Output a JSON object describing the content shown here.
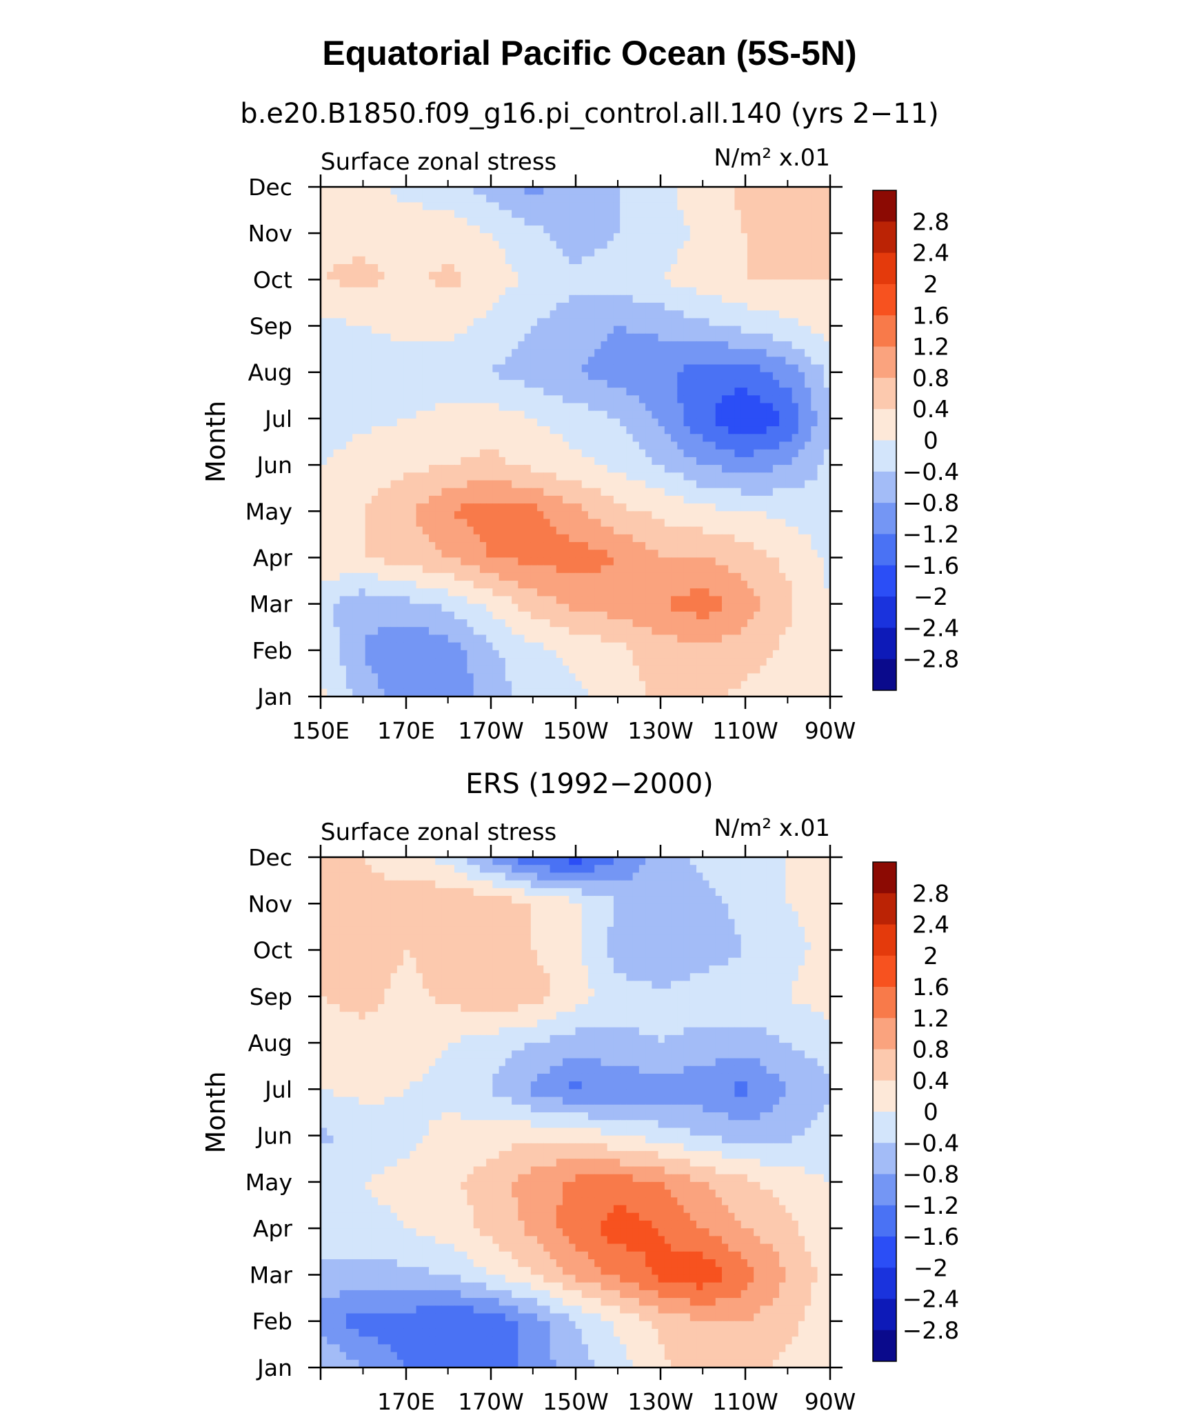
{
  "title": "Equatorial Pacific Ocean (5S-5N)",
  "subtitle_top": "b.e20.B1850.f09_g16.pi_control.all.140 (yrs 2−11)",
  "subtitle_bottom": "ERS (1992−2000)",
  "contour_colors": [
    "#0a0a8c",
    "#0d1ab8",
    "#1a33dd",
    "#2b4ef6",
    "#4a72f4",
    "#7496f4",
    "#a3bcf7",
    "#d3e5fb",
    "#fde8d8",
    "#fcc9ae",
    "#faa37e",
    "#f87a4a",
    "#f7521f",
    "#e43a0c",
    "#bb2305",
    "#8c0a03"
  ],
  "chart_data": [
    {
      "type": "heatmap",
      "panel": "model",
      "title": "b.e20.B1850.f09_g16.pi_control.all.140 (yrs 2−11)",
      "variable_label": "Surface zonal stress",
      "units_label": "N/m² x.01",
      "xlabel": "",
      "ylabel": "Month",
      "x_tick_labels": [
        "150E",
        "170E",
        "170W",
        "150W",
        "130W",
        "110W",
        "90W"
      ],
      "y_tick_labels": [
        "Jan",
        "Feb",
        "Mar",
        "Apr",
        "May",
        "Jun",
        "Jul",
        "Aug",
        "Sep",
        "Oct",
        "Nov",
        "Dec"
      ],
      "colorbar_levels": [
        "2.8",
        "2.4",
        "2",
        "1.6",
        "1.2",
        "0.8",
        "0.4",
        "0",
        "−0.4",
        "−0.8",
        "−1.2",
        "−1.6",
        "−2",
        "−2.4",
        "−2.8"
      ],
      "values": [
        [
          0.1,
          -0.6,
          -1.0,
          -1.2,
          -0.6,
          -0.2,
          -0.1,
          0.2,
          0.5,
          0.5,
          0.3,
          0.1,
          0.0
        ],
        [
          -0.1,
          -0.8,
          -1.2,
          -1.0,
          -0.5,
          -0.1,
          0.1,
          0.3,
          0.6,
          0.7,
          0.6,
          0.3,
          0.0
        ],
        [
          -0.3,
          -0.7,
          -0.5,
          -0.3,
          0.1,
          0.6,
          0.9,
          1.0,
          1.2,
          1.4,
          1.0,
          0.5,
          0.0
        ],
        [
          0.3,
          0.4,
          0.6,
          0.8,
          1.2,
          1.3,
          1.4,
          1.2,
          0.8,
          0.8,
          0.6,
          0.3,
          -0.1
        ],
        [
          0.3,
          0.4,
          0.7,
          1.2,
          1.4,
          1.3,
          0.9,
          0.5,
          0.3,
          0.1,
          0.0,
          -0.1,
          -0.2
        ],
        [
          0.0,
          0.2,
          0.3,
          0.4,
          0.5,
          0.3,
          0.1,
          -0.1,
          -0.4,
          -0.8,
          -1.0,
          -0.8,
          -0.3
        ],
        [
          -0.2,
          -0.1,
          0.0,
          0.1,
          0.2,
          0.0,
          -0.2,
          -0.4,
          -0.9,
          -1.5,
          -2.0,
          -1.6,
          -0.4
        ],
        [
          -0.4,
          -0.2,
          -0.2,
          -0.2,
          -0.4,
          -0.6,
          -0.8,
          -1.0,
          -1.1,
          -1.4,
          -1.4,
          -1.0,
          -0.3
        ],
        [
          -0.1,
          0.0,
          0.1,
          0.1,
          -0.1,
          -0.4,
          -0.6,
          -0.8,
          -0.7,
          -0.5,
          -0.3,
          -0.1,
          0.2
        ],
        [
          0.4,
          0.5,
          0.3,
          0.5,
          0.2,
          -0.1,
          -0.3,
          -0.2,
          0.0,
          0.2,
          0.4,
          0.4,
          0.4
        ],
        [
          0.3,
          0.3,
          0.2,
          0.2,
          0.0,
          -0.3,
          -0.6,
          -0.4,
          -0.2,
          0.1,
          0.4,
          0.6,
          0.5
        ],
        [
          0.2,
          0.1,
          -0.1,
          -0.2,
          -0.6,
          -0.9,
          -0.7,
          -0.4,
          -0.1,
          0.2,
          0.5,
          0.6,
          0.4
        ]
      ]
    },
    {
      "type": "heatmap",
      "panel": "obs",
      "title": "ERS (1992−2000)",
      "variable_label": "Surface zonal stress",
      "units_label": "N/m² x.01",
      "xlabel": "",
      "ylabel": "Month",
      "x_tick_labels": [
        "170E",
        "170W",
        "150W",
        "130W",
        "110W",
        "90W"
      ],
      "y_tick_labels": [
        "Jan",
        "Feb",
        "Mar",
        "Apr",
        "May",
        "Jun",
        "Jul",
        "Aug",
        "Sep",
        "Oct",
        "Nov",
        "Dec"
      ],
      "colorbar_levels": [
        "2.8",
        "2.4",
        "2",
        "1.6",
        "1.2",
        "0.8",
        "0.4",
        "0",
        "−0.4",
        "−0.8",
        "−1.2",
        "−1.6",
        "−2",
        "−2.4",
        "−2.8"
      ],
      "values": [
        [
          -0.4,
          -0.8,
          -1.2,
          -1.6,
          -1.6,
          -1.0,
          -0.6,
          -0.2,
          0.3,
          0.6,
          0.5,
          0.3,
          0.1
        ],
        [
          -1.0,
          -1.4,
          -1.4,
          -1.6,
          -1.5,
          -1.0,
          -0.4,
          0.1,
          0.5,
          0.8,
          0.8,
          0.5,
          0.2
        ],
        [
          -0.5,
          -0.6,
          -0.5,
          -0.4,
          0.0,
          0.4,
          0.9,
          1.3,
          1.7,
          1.9,
          1.4,
          0.8,
          0.2
        ],
        [
          -0.2,
          -0.1,
          0.0,
          0.2,
          0.5,
          0.9,
          1.4,
          1.8,
          1.6,
          1.2,
          0.8,
          0.5,
          0.1
        ],
        [
          -0.1,
          0.0,
          0.1,
          0.3,
          0.6,
          1.0,
          1.3,
          1.4,
          1.2,
          0.8,
          0.5,
          0.2,
          0.0
        ],
        [
          -0.5,
          -0.2,
          -0.1,
          0.1,
          0.2,
          0.3,
          0.3,
          0.0,
          -0.2,
          -0.4,
          -0.6,
          -0.5,
          -0.2
        ],
        [
          0.0,
          0.1,
          0.0,
          -0.1,
          -0.4,
          -0.9,
          -1.3,
          -1.1,
          -1.0,
          -1.1,
          -1.3,
          -0.8,
          -0.5
        ],
        [
          0.2,
          0.3,
          0.2,
          0.0,
          -0.2,
          -0.4,
          -0.6,
          -0.5,
          -0.4,
          -0.5,
          -0.6,
          -0.4,
          -0.2
        ],
        [
          0.4,
          0.5,
          0.3,
          0.5,
          0.7,
          0.6,
          0.2,
          -0.2,
          -0.3,
          -0.2,
          -0.1,
          0.0,
          0.2
        ],
        [
          0.5,
          0.6,
          0.4,
          0.5,
          0.6,
          0.4,
          0.1,
          -0.6,
          -0.8,
          -0.6,
          -0.4,
          -0.1,
          0.1
        ],
        [
          0.4,
          0.5,
          0.6,
          0.8,
          0.7,
          0.4,
          0.1,
          -0.4,
          -0.7,
          -0.5,
          -0.3,
          0.0,
          0.1
        ],
        [
          0.6,
          0.4,
          0.2,
          -0.2,
          -0.9,
          -1.6,
          -1.8,
          -1.2,
          -0.6,
          -0.3,
          -0.1,
          0.0,
          0.2
        ]
      ]
    }
  ]
}
